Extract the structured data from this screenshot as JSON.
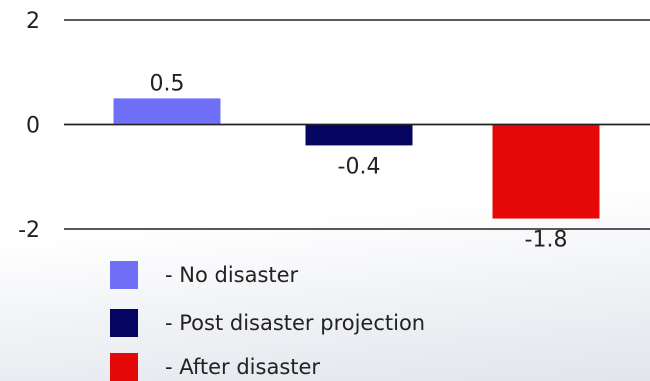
{
  "chart_data": {
    "type": "bar",
    "categories": [
      "No disaster",
      "Post disaster projection",
      "After disaster"
    ],
    "values": [
      0.5,
      -0.4,
      -1.8
    ],
    "data_labels": [
      "0.5",
      "-0.4",
      "-1.8"
    ],
    "colors": [
      "#6f6ff7",
      "#060660",
      "#e50808"
    ],
    "ylim": [
      -2,
      2
    ],
    "yticks": [
      "2",
      "0",
      "-2"
    ],
    "grid": true,
    "legend": {
      "placement": "bottom-left",
      "entries": [
        "- No disaster",
        "- Post disaster projection",
        "- After disaster"
      ]
    }
  }
}
